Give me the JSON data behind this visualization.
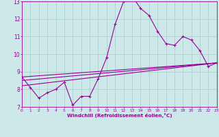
{
  "xlabel": "Windchill (Refroidissement éolien,°C)",
  "bg_color": "#cce8e8",
  "grid_color": "#aacccc",
  "line_color": "#990099",
  "xlim": [
    0,
    23
  ],
  "ylim": [
    7,
    13
  ],
  "yticks": [
    7,
    8,
    9,
    10,
    11,
    12,
    13
  ],
  "xticks": [
    0,
    1,
    2,
    3,
    4,
    5,
    6,
    7,
    8,
    9,
    10,
    11,
    12,
    13,
    14,
    15,
    16,
    17,
    18,
    19,
    20,
    21,
    22,
    23
  ],
  "main_series": [
    8.7,
    8.1,
    7.5,
    7.8,
    8.0,
    8.4,
    7.1,
    7.6,
    7.6,
    8.6,
    9.8,
    11.7,
    13.0,
    13.3,
    12.6,
    12.2,
    11.3,
    10.6,
    10.5,
    11.0,
    10.8,
    10.2,
    9.3,
    9.5
  ],
  "line1_start": 8.7,
  "line1_end": 9.5,
  "line2_start": 8.5,
  "line2_end": 9.5,
  "line3_start": 8.2,
  "line3_end": 9.5
}
